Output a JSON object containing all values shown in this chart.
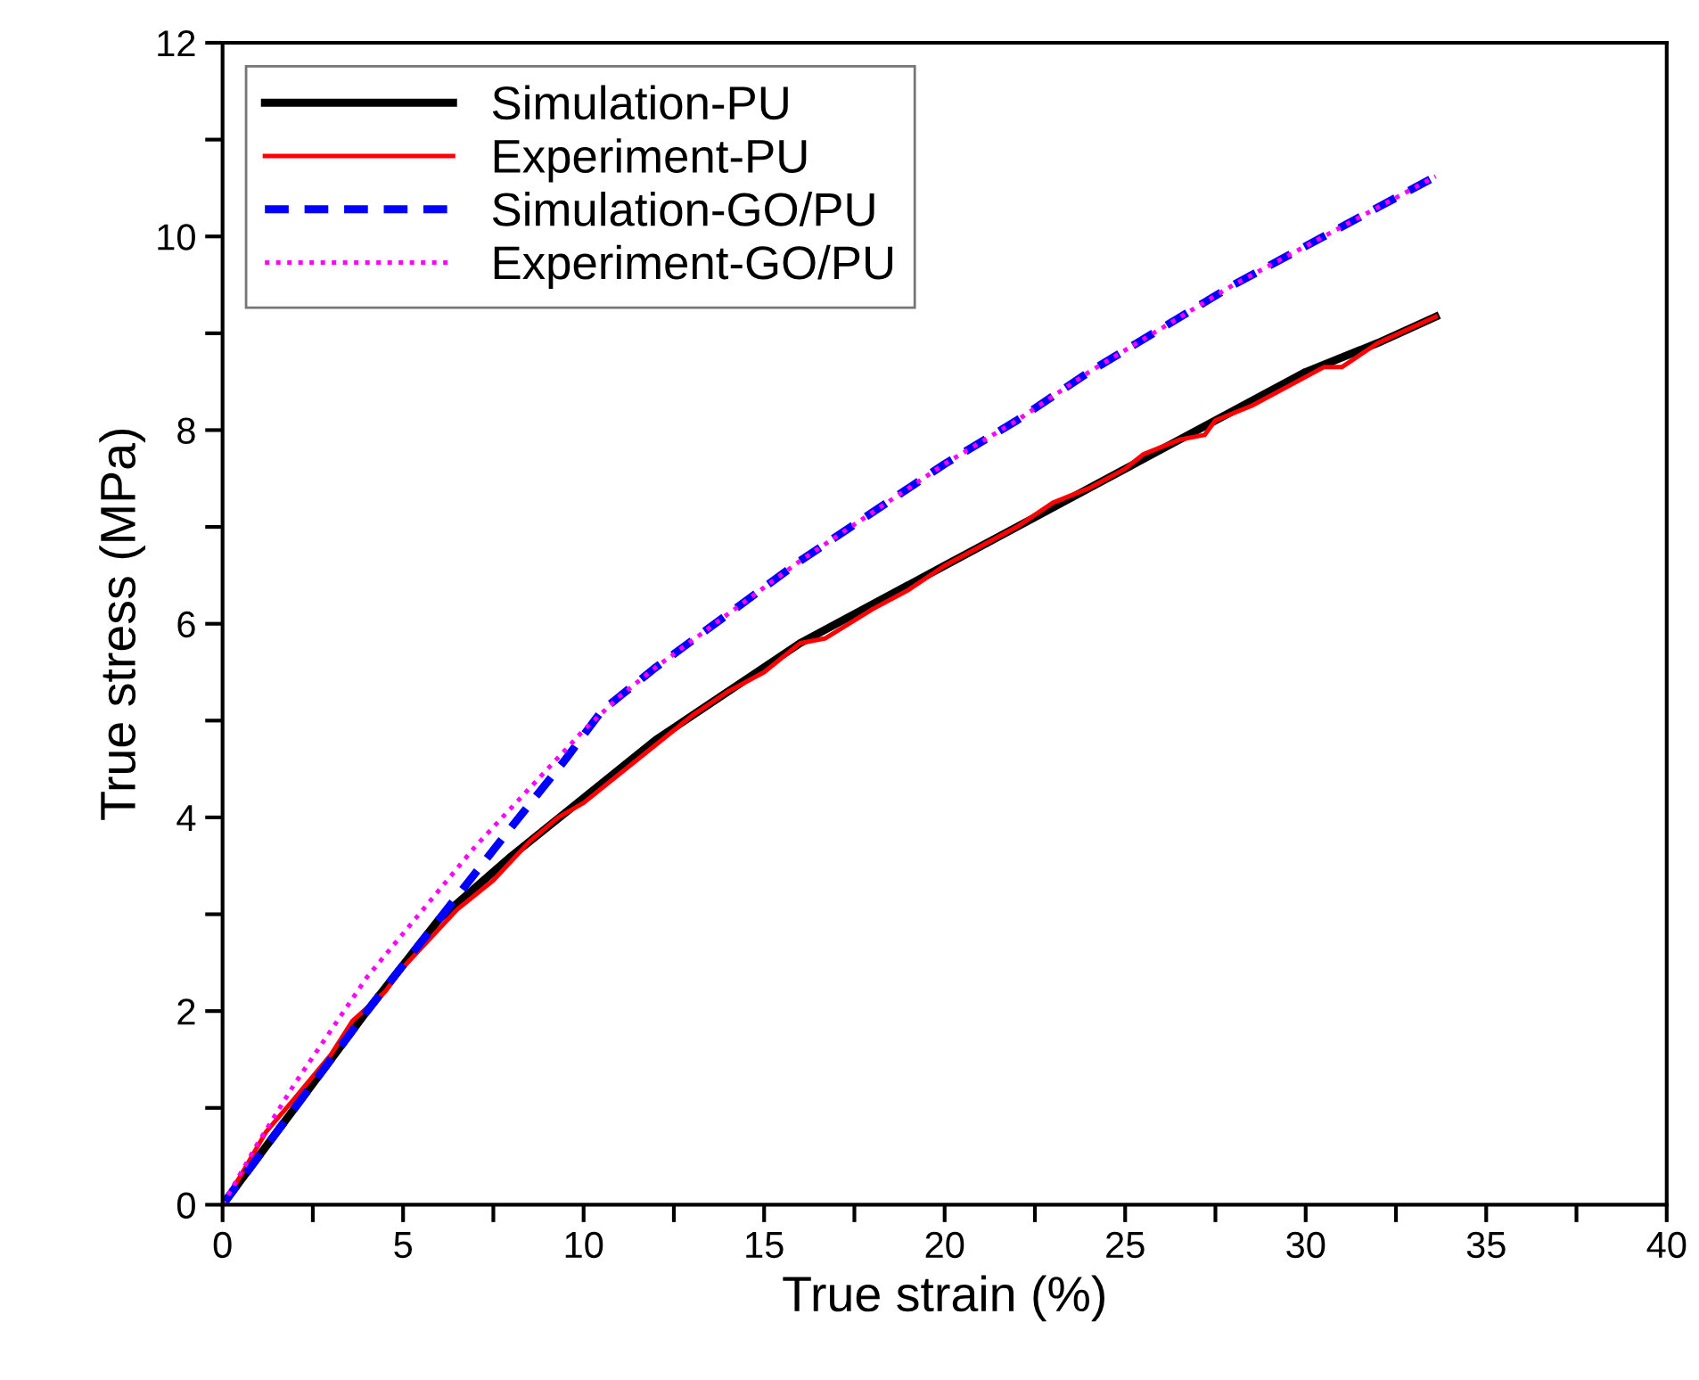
{
  "chart_data": {
    "type": "line",
    "xlabel": "True strain (%)",
    "ylabel": "True stress (MPa)",
    "xlim": [
      0,
      40
    ],
    "ylim": [
      0,
      12
    ],
    "xticks": [
      0,
      {
        "value": 2.5,
        "label": null
      },
      5,
      {
        "value": 7.5,
        "label": null
      },
      10,
      {
        "value": 12.5,
        "label": null
      },
      15,
      {
        "value": 17.5,
        "label": null
      },
      20,
      {
        "value": 22.5,
        "label": null
      },
      25,
      {
        "value": 27.5,
        "label": null
      },
      30,
      {
        "value": 32.5,
        "label": null
      },
      35,
      {
        "value": 37.5,
        "label": null
      },
      40
    ],
    "yticks": [
      0,
      {
        "value": 1,
        "label": null
      },
      2,
      {
        "value": 3,
        "label": null
      },
      4,
      {
        "value": 5,
        "label": null
      },
      6,
      {
        "value": 7,
        "label": null
      },
      8,
      {
        "value": 9,
        "label": null
      },
      10,
      {
        "value": 11,
        "label": null
      },
      12
    ],
    "grid": false,
    "legend": "top left",
    "series": [
      {
        "name": "Simulation-PU",
        "color": "#000000",
        "line_style": "solid",
        "x": [
          0,
          2,
          4,
          6,
          8,
          10,
          12,
          14,
          16,
          18,
          20,
          22,
          24,
          26,
          28,
          30,
          32,
          33.6
        ],
        "values": [
          0,
          1.0,
          2.0,
          2.95,
          3.6,
          4.2,
          4.8,
          5.3,
          5.8,
          6.2,
          6.6,
          7.0,
          7.4,
          7.8,
          8.2,
          8.6,
          8.9,
          9.17
        ]
      },
      {
        "name": "Experiment-PU",
        "color": "#ff0000",
        "line_style": "solid",
        "x": [
          0,
          0.5,
          1.2,
          2,
          3,
          3.6,
          4.5,
          5,
          6,
          6.5,
          7.5,
          8.5,
          9.3,
          10,
          11,
          12,
          13,
          14,
          15,
          16,
          16.7,
          18,
          19,
          20,
          21,
          22,
          23,
          24,
          25,
          25.5,
          26.5,
          27.2,
          27.5,
          28.5,
          29.5,
          30.5,
          31,
          32,
          33.6
        ],
        "values": [
          0,
          0.3,
          0.75,
          1.1,
          1.55,
          1.9,
          2.2,
          2.45,
          2.85,
          3.05,
          3.35,
          3.75,
          4.0,
          4.15,
          4.45,
          4.75,
          5.05,
          5.3,
          5.5,
          5.8,
          5.85,
          6.15,
          6.35,
          6.6,
          6.8,
          7.0,
          7.25,
          7.4,
          7.6,
          7.75,
          7.9,
          7.95,
          8.1,
          8.25,
          8.45,
          8.65,
          8.65,
          8.9,
          9.17
        ]
      },
      {
        "name": "Simulation-GO/PU",
        "color": "#0000ff",
        "line_style": "dashed",
        "x": [
          0,
          2,
          4,
          6,
          8,
          9.5,
          10.5,
          11,
          12,
          14,
          16,
          18,
          20,
          22,
          24,
          26,
          28,
          30,
          32,
          33.6
        ],
        "values": [
          0,
          1.0,
          2.0,
          2.95,
          3.9,
          4.6,
          5.1,
          5.25,
          5.55,
          6.1,
          6.65,
          7.15,
          7.65,
          8.1,
          8.6,
          9.05,
          9.5,
          9.9,
          10.3,
          10.62
        ]
      },
      {
        "name": "Experiment-GO/PU",
        "color": "#ff00ff",
        "line_style": "dotted",
        "x": [
          0,
          1,
          2,
          3,
          4,
          5,
          6,
          7,
          8,
          9,
          10,
          11,
          12,
          14,
          16,
          18,
          20,
          22,
          24,
          26,
          28,
          30,
          32,
          33.6
        ],
        "values": [
          0,
          0.65,
          1.25,
          1.8,
          2.35,
          2.8,
          3.25,
          3.7,
          4.1,
          4.5,
          4.9,
          5.25,
          5.55,
          6.1,
          6.65,
          7.15,
          7.65,
          8.1,
          8.6,
          9.05,
          9.5,
          9.9,
          10.3,
          10.62
        ]
      }
    ]
  }
}
